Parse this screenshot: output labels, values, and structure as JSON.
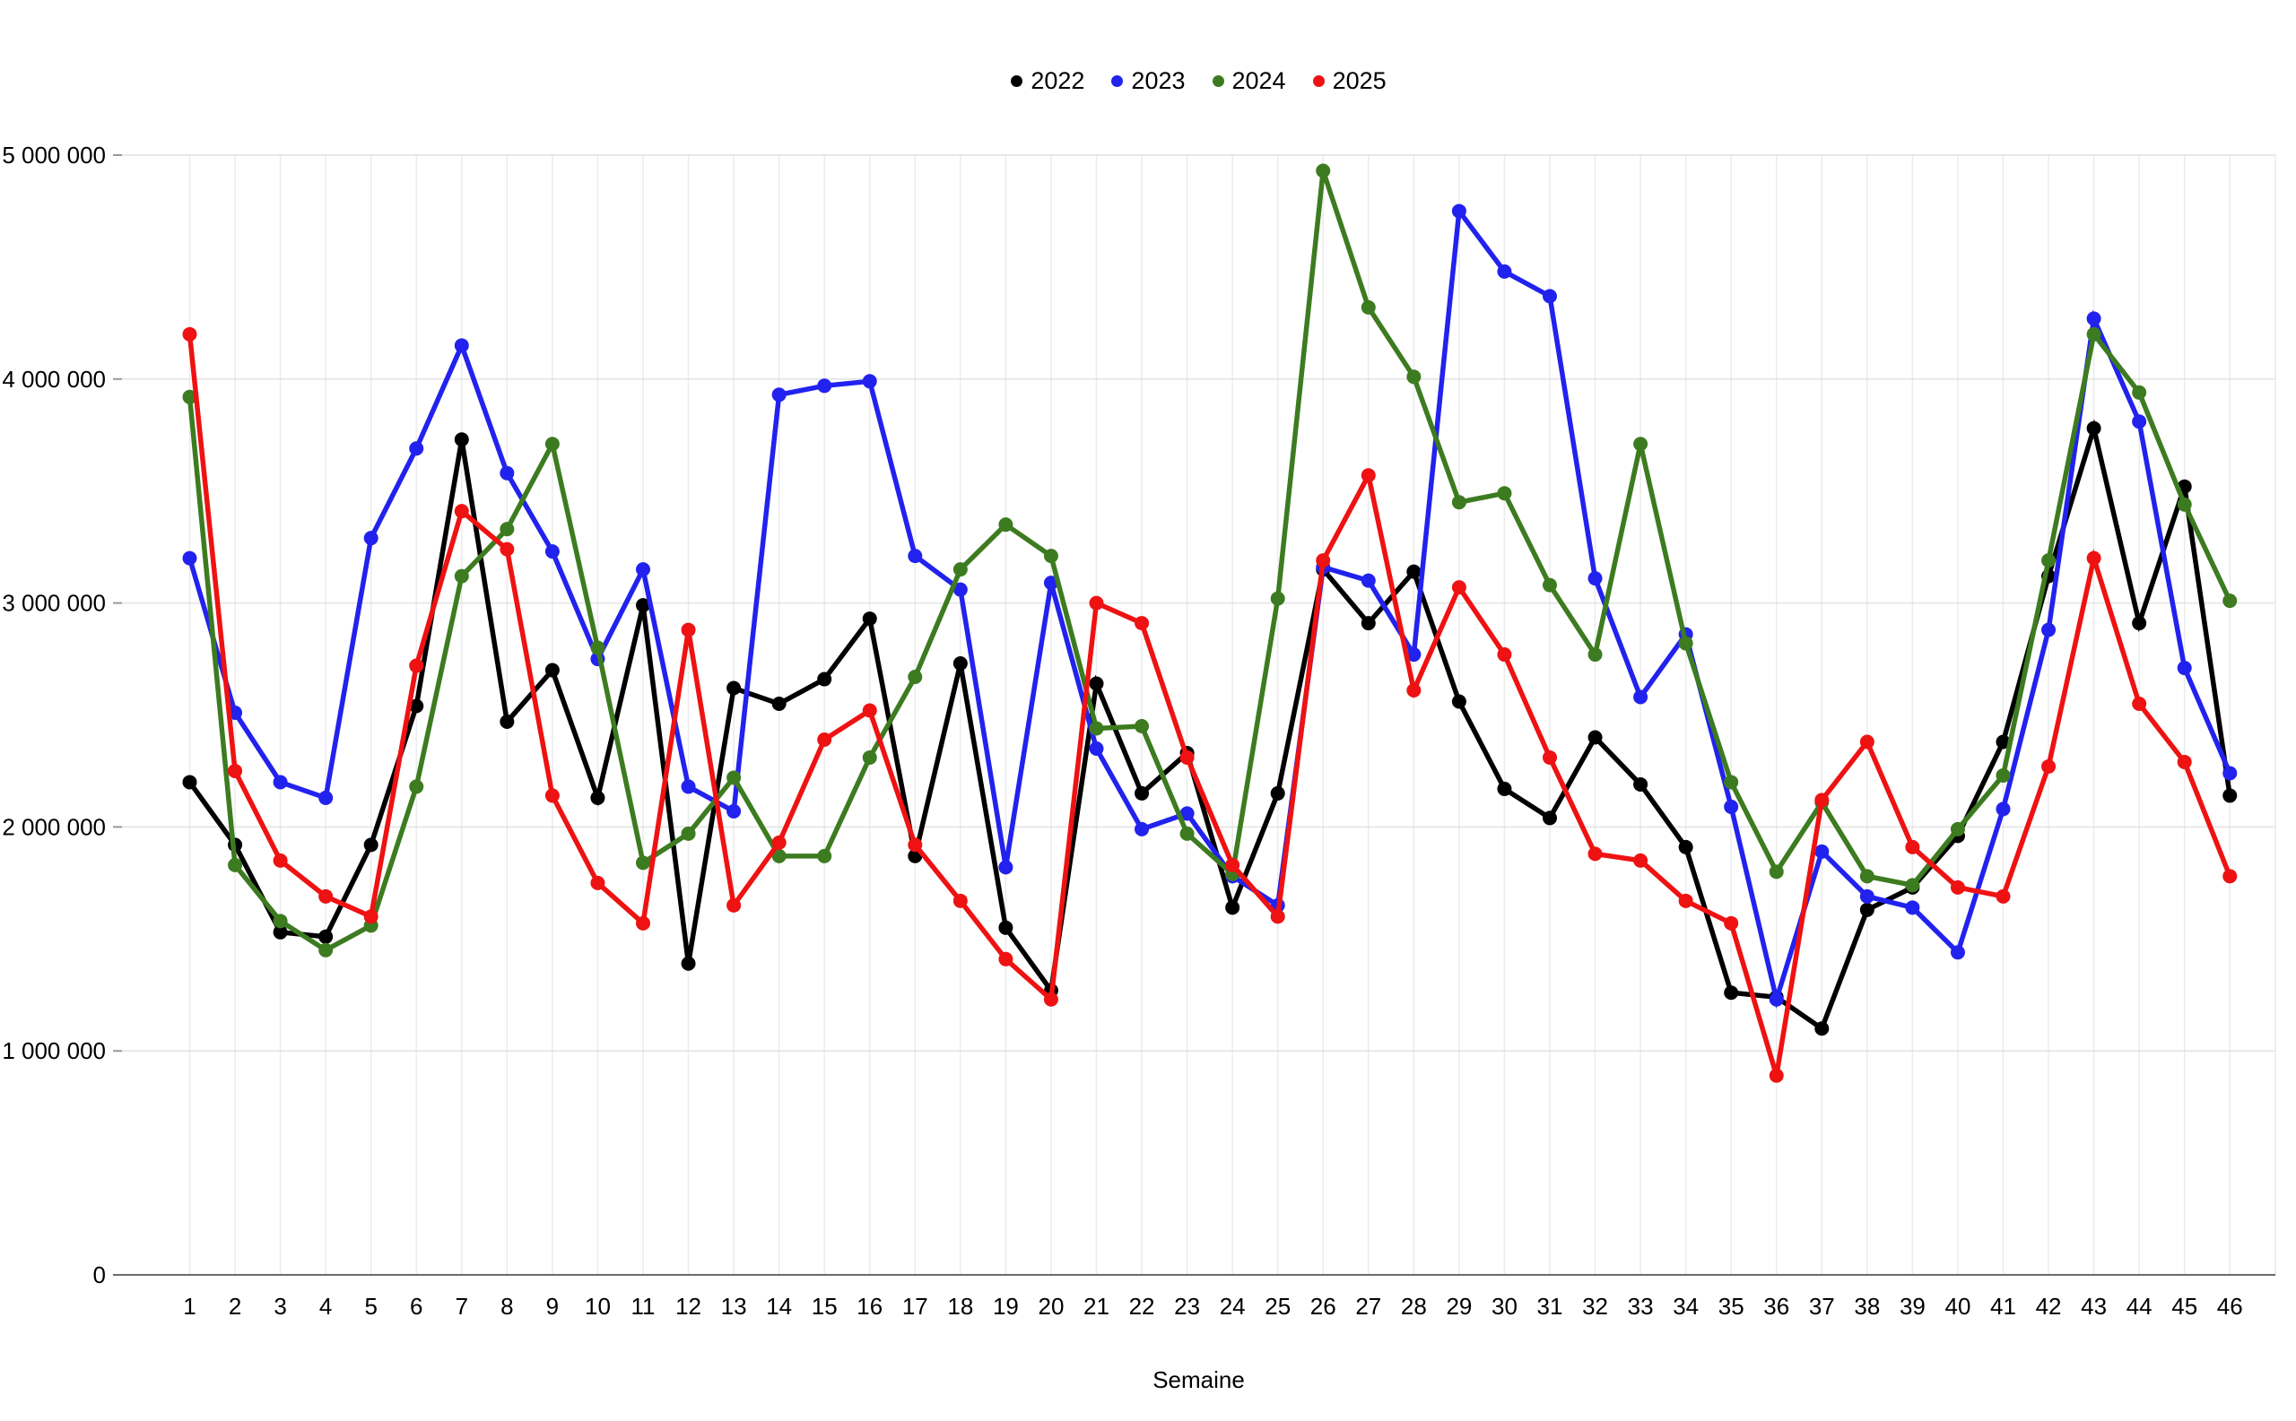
{
  "chart_data": {
    "type": "line",
    "title": "",
    "xlabel": "Semaine",
    "ylabel": "",
    "legend_position": "top-center",
    "grid": {
      "horizontal": true,
      "vertical": true
    },
    "x": [
      1,
      2,
      3,
      4,
      5,
      6,
      7,
      8,
      9,
      10,
      11,
      12,
      13,
      14,
      15,
      16,
      17,
      18,
      19,
      20,
      21,
      22,
      23,
      24,
      25,
      26,
      27,
      28,
      29,
      30,
      31,
      32,
      33,
      34,
      35,
      36,
      37,
      38,
      39,
      40,
      41,
      42,
      43,
      44,
      45,
      46
    ],
    "ylim": [
      0,
      5000000
    ],
    "yticks": [
      {
        "value": 0,
        "label": "0"
      },
      {
        "value": 1000000,
        "label": "1 000 000"
      },
      {
        "value": 2000000,
        "label": "2 000 000"
      },
      {
        "value": 3000000,
        "label": "3 000 000"
      },
      {
        "value": 4000000,
        "label": "4 000 000"
      },
      {
        "value": 5000000,
        "label": "5 000 000"
      }
    ],
    "style": {
      "hgrid_color": "#e2e2e2",
      "vgrid_color": "#ececec",
      "axis_color": "#6b6b6b",
      "tick_color": "#999999",
      "label_color": "#000000",
      "line_width": 5.5,
      "marker_radius": 8
    },
    "series": [
      {
        "name": "2022",
        "color": "#000000",
        "values": [
          2200000,
          1920000,
          1530000,
          1510000,
          1920000,
          2540000,
          3730000,
          2470000,
          2700000,
          2130000,
          2990000,
          1390000,
          2620000,
          2550000,
          2660000,
          2930000,
          1870000,
          2730000,
          1550000,
          1270000,
          2640000,
          2150000,
          2330000,
          1640000,
          2150000,
          3150000,
          2910000,
          3140000,
          2560000,
          2170000,
          2040000,
          2400000,
          2190000,
          1910000,
          1260000,
          1240000,
          1100000,
          1630000,
          1730000,
          1960000,
          2380000,
          3120000,
          3780000,
          2910000,
          3520000,
          2140000
        ]
      },
      {
        "name": "2023",
        "color": "#2222ee",
        "values": [
          3200000,
          2510000,
          2200000,
          2130000,
          3290000,
          3690000,
          4150000,
          3580000,
          3230000,
          2750000,
          3150000,
          2180000,
          2070000,
          3930000,
          3970000,
          3990000,
          3210000,
          3060000,
          1820000,
          3090000,
          2350000,
          1990000,
          2060000,
          1780000,
          1650000,
          3160000,
          3100000,
          2770000,
          4750000,
          4480000,
          4370000,
          3110000,
          2580000,
          2860000,
          2090000,
          1230000,
          1890000,
          1690000,
          1640000,
          1440000,
          2080000,
          2880000,
          4270000,
          3810000,
          2710000,
          2240000
        ]
      },
      {
        "name": "2024",
        "color": "#3d7b20",
        "values": [
          3920000,
          1830000,
          1580000,
          1450000,
          1560000,
          2180000,
          3120000,
          3330000,
          3710000,
          2800000,
          1840000,
          1970000,
          2220000,
          1870000,
          1870000,
          2310000,
          2670000,
          3150000,
          3350000,
          3210000,
          2440000,
          2450000,
          1970000,
          1790000,
          3020000,
          4930000,
          4320000,
          4010000,
          3450000,
          3490000,
          3080000,
          2770000,
          3710000,
          2820000,
          2200000,
          1800000,
          2110000,
          1780000,
          1740000,
          1990000,
          2230000,
          3190000,
          4200000,
          3940000,
          3440000,
          3010000
        ]
      },
      {
        "name": "2025",
        "color": "#ee1212",
        "values": [
          4200000,
          2250000,
          1850000,
          1690000,
          1600000,
          2720000,
          3410000,
          3240000,
          2140000,
          1750000,
          1570000,
          2880000,
          1650000,
          1930000,
          2390000,
          2520000,
          1920000,
          1670000,
          1410000,
          1230000,
          3000000,
          2910000,
          2310000,
          1830000,
          1600000,
          3190000,
          3570000,
          2610000,
          3070000,
          2770000,
          2310000,
          1880000,
          1850000,
          1670000,
          1570000,
          890000,
          2120000,
          2380000,
          1910000,
          1730000,
          1690000,
          2270000,
          3200000,
          2550000,
          2290000,
          1780000
        ]
      }
    ]
  }
}
